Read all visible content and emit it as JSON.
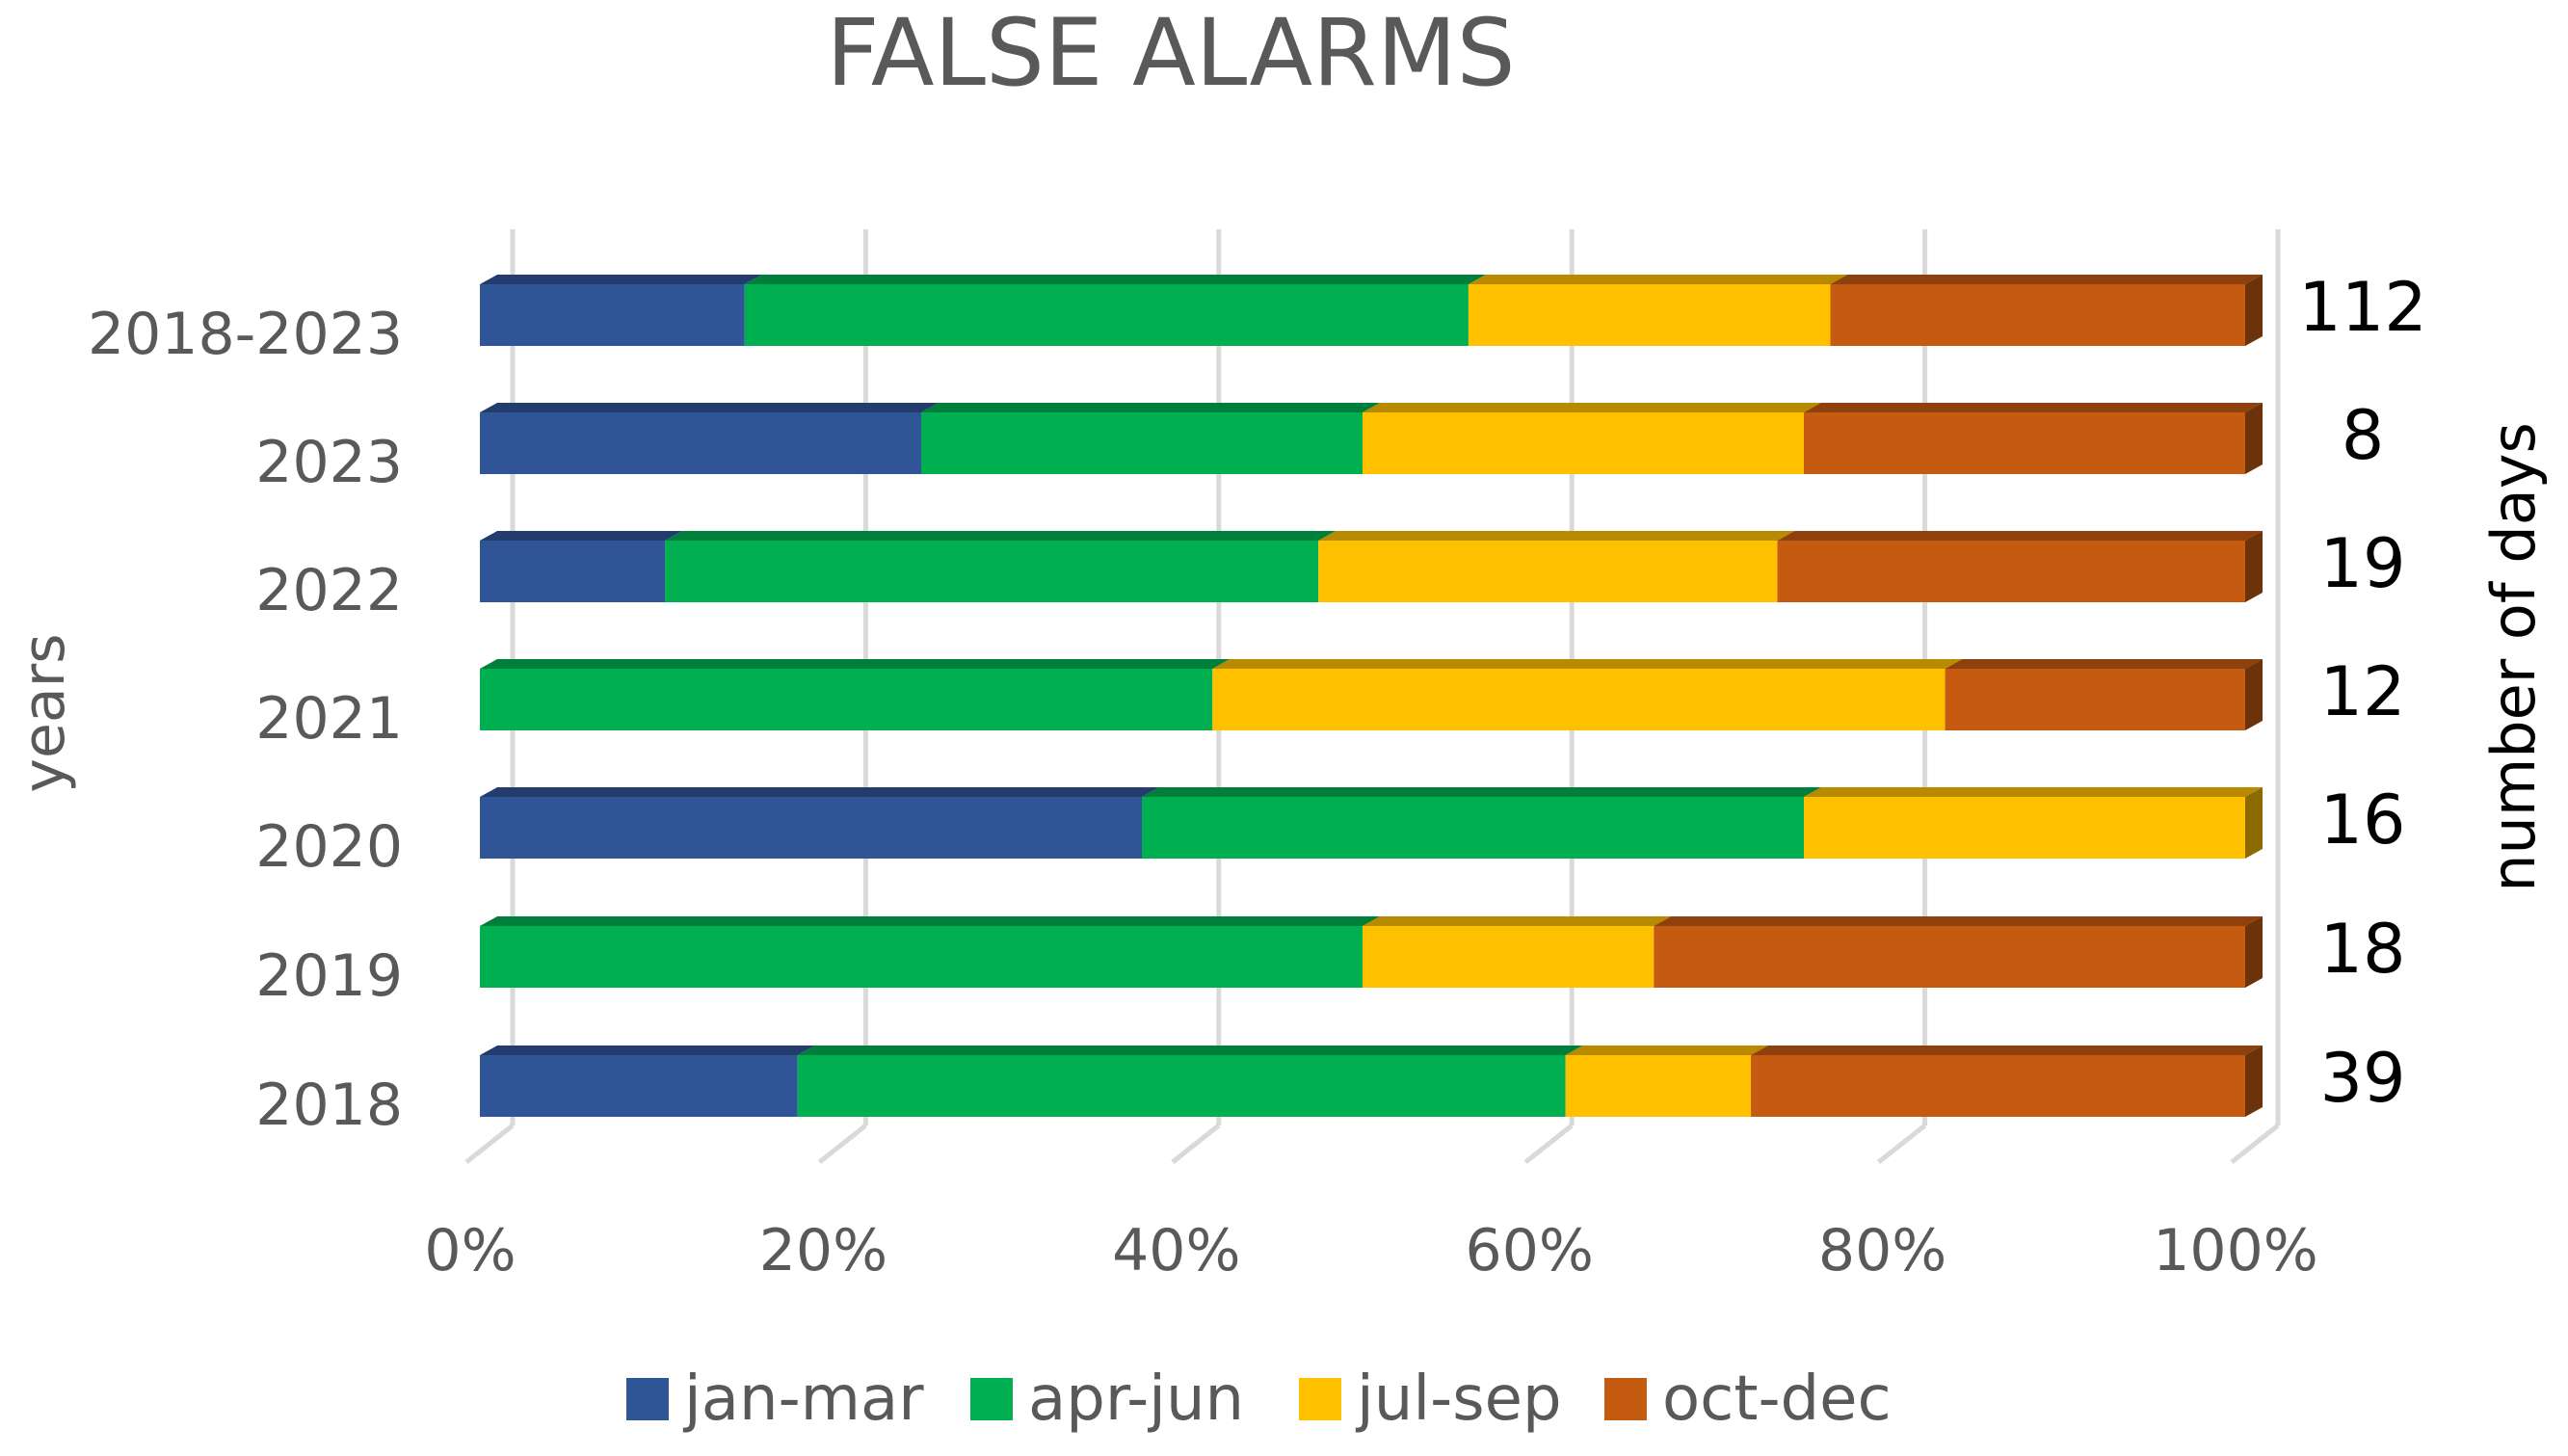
{
  "chart_data": {
    "type": "bar",
    "orientation": "horizontal",
    "stacked": "percent",
    "title": "FALSE ALARMS",
    "ylabel": "years",
    "y2label": "number of days",
    "categories": [
      "2018-2023",
      "2023",
      "2022",
      "2021",
      "2020",
      "2019",
      "2018"
    ],
    "days": [
      "112",
      "8",
      "19",
      "12",
      "16",
      "18",
      "39"
    ],
    "series": [
      {
        "name": "jan-mar",
        "color": "#2F5597",
        "values": [
          15,
          25,
          10.5,
          0,
          37.5,
          0,
          18
        ]
      },
      {
        "name": "apr-jun",
        "color": "#00B050",
        "values": [
          41,
          25,
          37,
          41.5,
          37.5,
          50,
          43.5
        ]
      },
      {
        "name": "jul-sep",
        "color": "#FFC000",
        "values": [
          20.5,
          25,
          26,
          41.5,
          25,
          16.5,
          10.5
        ]
      },
      {
        "name": "oct-dec",
        "color": "#C55A11",
        "values": [
          23.5,
          25,
          26.5,
          17,
          0,
          33.5,
          28
        ]
      }
    ],
    "xlim": [
      0,
      100
    ],
    "xticks": [
      "0%",
      "20%",
      "40%",
      "60%",
      "80%",
      "100%"
    ],
    "grid": "vertical",
    "legend": "bottom"
  }
}
